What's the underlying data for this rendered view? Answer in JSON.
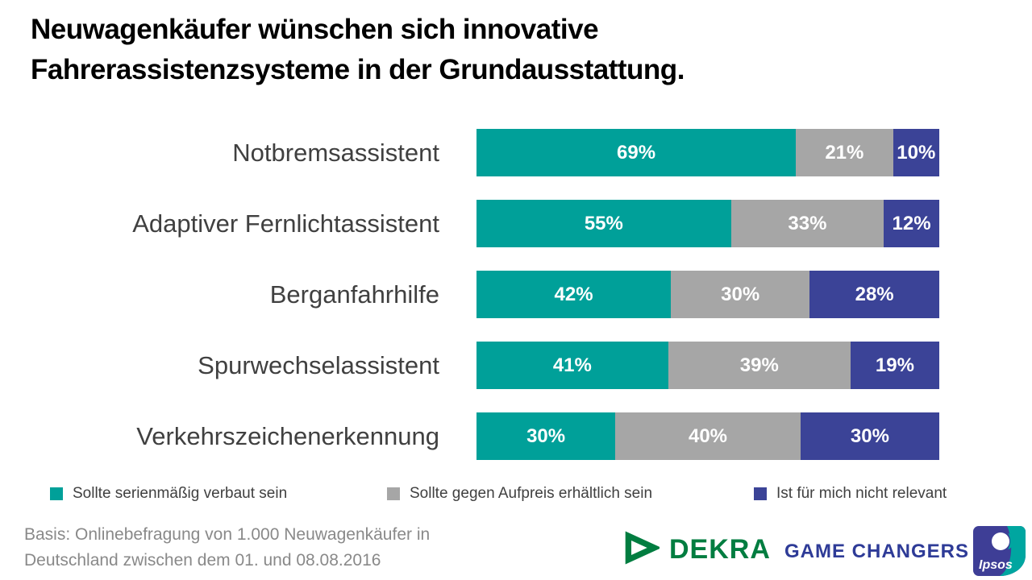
{
  "title": {
    "line1": "Neuwagenkäufer wünschen sich innovative",
    "line2": "Fahrerassistenzsysteme in der Grundausstattung."
  },
  "chart_data": {
    "type": "bar",
    "orientation": "horizontal",
    "stacked": true,
    "value_format": "percent",
    "xlim": [
      0,
      100
    ],
    "grid": false,
    "legend_position": "bottom",
    "categories": [
      "Notbremsassistent",
      "Adaptiver Fernlichtassistent",
      "Berganfahrhilfe",
      "Spurwechselassistent",
      "Verkehrszeichenerkennung"
    ],
    "series": [
      {
        "name": "Sollte serienmäßig verbaut sein",
        "color": "#00A099",
        "values": [
          69,
          55,
          42,
          41,
          30
        ]
      },
      {
        "name": "Sollte gegen Aufpreis erhältlich sein",
        "color": "#A6A6A6",
        "values": [
          21,
          33,
          30,
          39,
          40
        ]
      },
      {
        "name": "Ist für mich nicht relevant",
        "color": "#3B4397",
        "values": [
          10,
          12,
          28,
          19,
          30
        ]
      }
    ]
  },
  "footer": {
    "basis_line1": "Basis:  Onlinebefragung von 1.000 Neuwagenkäufer in",
    "basis_line2": "Deutschland zwischen dem 01. und 08.08.2016",
    "text_color": "#898989"
  },
  "logos": {
    "dekra": {
      "label": "DEKRA",
      "color": "#017D40"
    },
    "game_changers": {
      "label": "GAME CHANGERS",
      "color": "#2E3B97"
    },
    "ipsos": {
      "label": "Ipsos",
      "indigo": "#3E3E96",
      "teal": "#00A6A0"
    }
  }
}
